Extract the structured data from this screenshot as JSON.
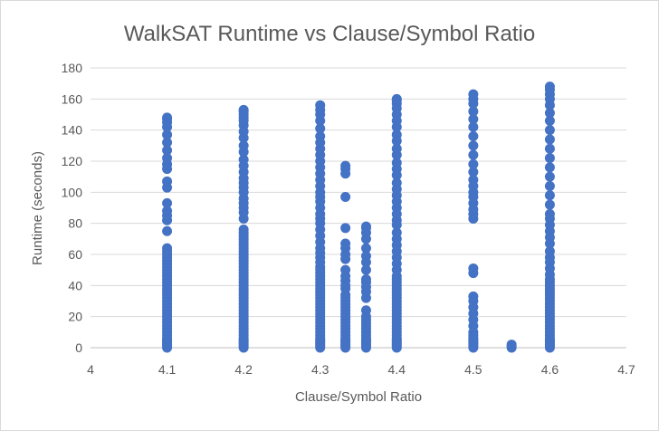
{
  "chart_data": {
    "type": "scatter",
    "title": "WalkSAT Runtime vs Clause/Symbol Ratio",
    "xlabel": "Clause/Symbol Ratio",
    "ylabel": "Runtime (seconds)",
    "xlim": [
      4,
      4.7
    ],
    "ylim": [
      0,
      180
    ],
    "xticks": [
      "4",
      "4.1",
      "4.2",
      "4.3",
      "4.4",
      "4.5",
      "4.6",
      "4.7"
    ],
    "yticks": [
      "0",
      "20",
      "40",
      "60",
      "80",
      "100",
      "120",
      "140",
      "160",
      "180"
    ],
    "grid": "horizontal",
    "marker_color": "#4472c4",
    "series": [
      {
        "points": [
          {
            "x": 4.1,
            "y": [
              0,
              1,
              2,
              3,
              4,
              5,
              6,
              8,
              10,
              12,
              14,
              16,
              18,
              20,
              22,
              24,
              26,
              28,
              30,
              32,
              34,
              36,
              38,
              40,
              42,
              44,
              46,
              48,
              50,
              52,
              54,
              56,
              58,
              60,
              62,
              64,
              75,
              82,
              85,
              88,
              93,
              103,
              107,
              115,
              118,
              122,
              127,
              132,
              137,
              142,
              145,
              147,
              148
            ]
          },
          {
            "x": 4.2,
            "y": [
              0,
              1,
              2,
              3,
              4,
              5,
              6,
              8,
              10,
              12,
              14,
              16,
              18,
              20,
              22,
              24,
              26,
              28,
              30,
              32,
              34,
              36,
              38,
              40,
              42,
              44,
              46,
              48,
              50,
              52,
              54,
              56,
              58,
              60,
              62,
              64,
              66,
              68,
              70,
              72,
              74,
              76,
              83,
              87,
              90,
              93,
              96,
              100,
              103,
              106,
              109,
              113,
              117,
              121,
              126,
              130,
              135,
              139,
              143,
              146,
              148,
              150,
              152,
              153
            ]
          },
          {
            "x": 4.3,
            "y": [
              0,
              1,
              2,
              3,
              4,
              5,
              6,
              8,
              10,
              12,
              14,
              16,
              18,
              20,
              22,
              24,
              26,
              28,
              30,
              32,
              34,
              36,
              38,
              40,
              42,
              44,
              46,
              48,
              50,
              52,
              55,
              58,
              61,
              64,
              68,
              72,
              76,
              80,
              83,
              86,
              90,
              94,
              97,
              100,
              104,
              108,
              112,
              116,
              120,
              124,
              128,
              132,
              136,
              141,
              146,
              150,
              153,
              156
            ]
          },
          {
            "x": 4.333,
            "y": [
              0,
              1,
              2,
              3,
              4,
              5,
              6,
              8,
              10,
              12,
              14,
              16,
              18,
              20,
              22,
              24,
              26,
              28,
              30,
              32,
              34,
              38,
              40,
              43,
              46,
              50,
              57,
              60,
              64,
              67,
              77,
              97,
              112,
              115,
              117
            ]
          },
          {
            "x": 4.36,
            "y": [
              0,
              1,
              2,
              3,
              4,
              5,
              6,
              8,
              10,
              12,
              14,
              16,
              18,
              20,
              24,
              32,
              36,
              39,
              42,
              44,
              50,
              55,
              59,
              64,
              70,
              74,
              77,
              78
            ]
          },
          {
            "x": 4.4,
            "y": [
              0,
              1,
              2,
              3,
              4,
              5,
              6,
              8,
              10,
              12,
              14,
              16,
              18,
              20,
              22,
              24,
              26,
              28,
              30,
              32,
              34,
              36,
              38,
              40,
              42,
              44,
              46,
              50,
              54,
              58,
              62,
              66,
              70,
              74,
              79,
              82,
              86,
              90,
              94,
              98,
              102,
              106,
              111,
              115,
              119,
              124,
              128,
              133,
              137,
              142,
              146,
              150,
              154,
              157,
              159,
              160
            ]
          },
          {
            "x": 4.5,
            "y": [
              0,
              1,
              2,
              3,
              4,
              5,
              6,
              8,
              10,
              14,
              18,
              22,
              26,
              30,
              33,
              48,
              51,
              83,
              86,
              89,
              93,
              97,
              100,
              104,
              108,
              113,
              118,
              124,
              130,
              136,
              142,
              147,
              152,
              157,
              160,
              163
            ]
          },
          {
            "x": 4.55,
            "y": [
              0,
              1,
              2
            ]
          },
          {
            "x": 4.6,
            "y": [
              0,
              1,
              2,
              3,
              4,
              5,
              6,
              8,
              10,
              12,
              14,
              16,
              18,
              20,
              22,
              24,
              26,
              28,
              30,
              32,
              34,
              36,
              38,
              40,
              42,
              44,
              47,
              51,
              55,
              58,
              62,
              67,
              71,
              75,
              79,
              83,
              86,
              92,
              98,
              104,
              110,
              116,
              122,
              128,
              134,
              140,
              146,
              151,
              156,
              160,
              163,
              166,
              168
            ]
          }
        ]
      }
    ]
  }
}
